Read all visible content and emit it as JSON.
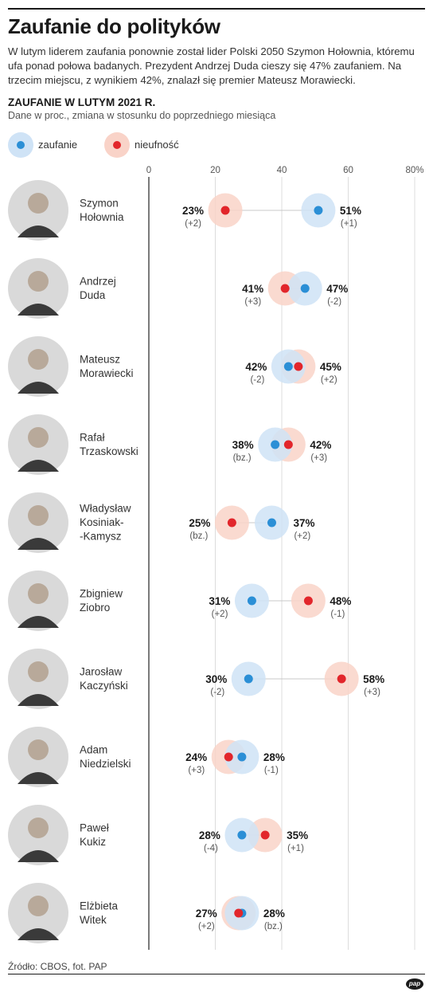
{
  "header": {
    "title": "Zaufanie do polityków",
    "intro": "W lutym liderem zaufania ponownie został lider Polski 2050 Szymon Hołownia, któremu ufa ponad połowa badanych. Prezydent Andrzej Duda cieszy się 47% zaufaniem. Na trzecim miejscu, z wynikiem 42%, znalazł się premier Mateusz Morawiecki.",
    "subhead": "ZAUFANIE W LUTYM 2021 R.",
    "note": "Dane w proc., zmiana w stosunku do poprzedniego miesiąca"
  },
  "legend": {
    "trust_label": "zaufanie",
    "distrust_label": "nieufność"
  },
  "colors": {
    "trust": "#2b8fd6",
    "trust_halo": "#cfe3f6",
    "distrust": "#e2262b",
    "distrust_halo": "#f9d3c8",
    "grid": "#dcdcdc",
    "axis": "#222222"
  },
  "chart_data": {
    "type": "dot-plot",
    "xlim": [
      0,
      80
    ],
    "ticks": [
      "0",
      "20",
      "40",
      "60",
      "80%"
    ],
    "tick_values": [
      0,
      20,
      40,
      60,
      80
    ],
    "series": [
      {
        "name": "zaufanie",
        "key": "trust"
      },
      {
        "name": "nieufność",
        "key": "distrust"
      }
    ],
    "rows": [
      {
        "first": "Szymon",
        "last": "Hołownia",
        "trust": 51,
        "trust_change": "(+1)",
        "distrust": 23,
        "distrust_change": "(+2)",
        "photo": "portrait-photo"
      },
      {
        "first": "Andrzej",
        "last": "Duda",
        "trust": 47,
        "trust_change": "(-2)",
        "distrust": 41,
        "distrust_change": "(+3)",
        "photo": "portrait-photo"
      },
      {
        "first": "Mateusz",
        "last": "Morawiecki",
        "trust": 42,
        "trust_change": "(-2)",
        "distrust": 45,
        "distrust_change": "(+2)",
        "photo": "portrait-photo"
      },
      {
        "first": "Rafał",
        "last": "Trzaskowski",
        "trust": 38,
        "trust_change": "(bz.)",
        "distrust": 42,
        "distrust_change": "(+3)",
        "photo": "portrait-photo"
      },
      {
        "first": "Władysław",
        "last": "Kosiniak-\n-Kamysz",
        "trust": 37,
        "trust_change": "(+2)",
        "distrust": 25,
        "distrust_change": "(bz.)",
        "photo": "portrait-photo"
      },
      {
        "first": "Zbigniew",
        "last": "Ziobro",
        "trust": 31,
        "trust_change": "(+2)",
        "distrust": 48,
        "distrust_change": "(-1)",
        "photo": "portrait-photo"
      },
      {
        "first": "Jarosław",
        "last": "Kaczyński",
        "trust": 30,
        "trust_change": "(-2)",
        "distrust": 58,
        "distrust_change": "(+3)",
        "photo": "portrait-photo"
      },
      {
        "first": "Adam",
        "last": "Niedzielski",
        "trust": 28,
        "trust_change": "(-1)",
        "distrust": 24,
        "distrust_change": "(+3)",
        "photo": "portrait-photo"
      },
      {
        "first": "Paweł",
        "last": "Kukiz",
        "trust": 28,
        "trust_change": "(-4)",
        "distrust": 35,
        "distrust_change": "(+1)",
        "photo": "portrait-photo"
      },
      {
        "first": "Elżbieta",
        "last": "Witek",
        "trust": 28,
        "trust_change": "(bz.)",
        "distrust": 27,
        "distrust_change": "(+2)",
        "photo": "portrait-photo"
      }
    ]
  },
  "footer": {
    "source": "Źródło: CBOS, fot. PAP",
    "logo": "pap"
  }
}
